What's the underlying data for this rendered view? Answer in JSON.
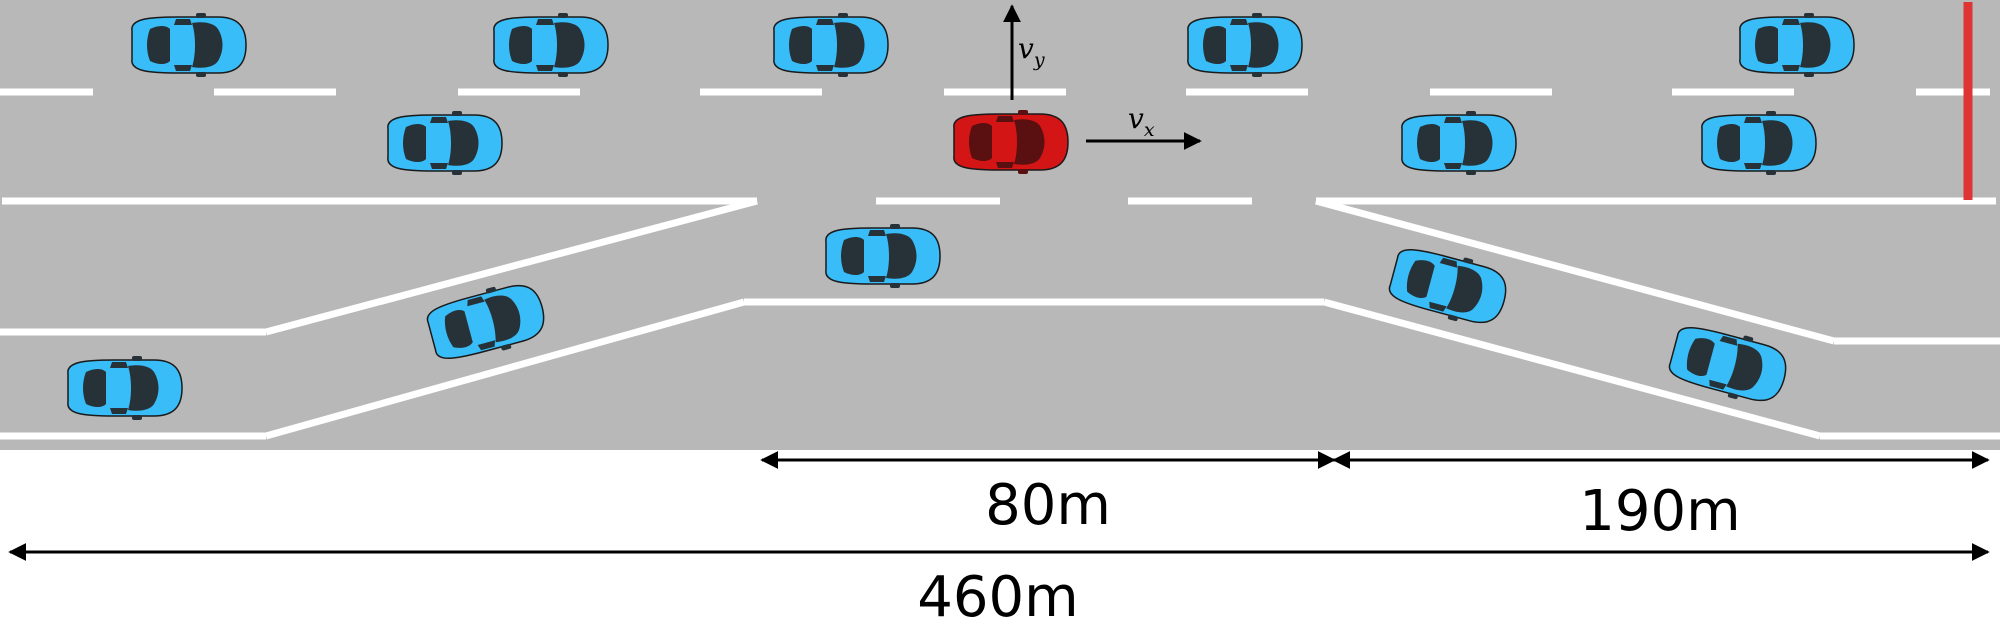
{
  "colors": {
    "road": "#b8b8b8",
    "marking": "#ffffff",
    "car_body": "#38bdf8",
    "car_window": "#263238",
    "ego_car_body": "#d41515",
    "finish_line": "#dd3535",
    "arrow": "#000000"
  },
  "icons": {
    "car": "car-icon",
    "ego_car": "ego-car-icon",
    "finish": "finish-line"
  },
  "labels": {
    "vy_main": "v",
    "vy_sub": "y",
    "vx_main": "v",
    "vx_sub": "x"
  },
  "dimensions": [
    {
      "name": "dim-80m",
      "label": "80m"
    },
    {
      "name": "dim-190m",
      "label": "190m"
    },
    {
      "name": "dim-460m",
      "label": "460m"
    }
  ]
}
